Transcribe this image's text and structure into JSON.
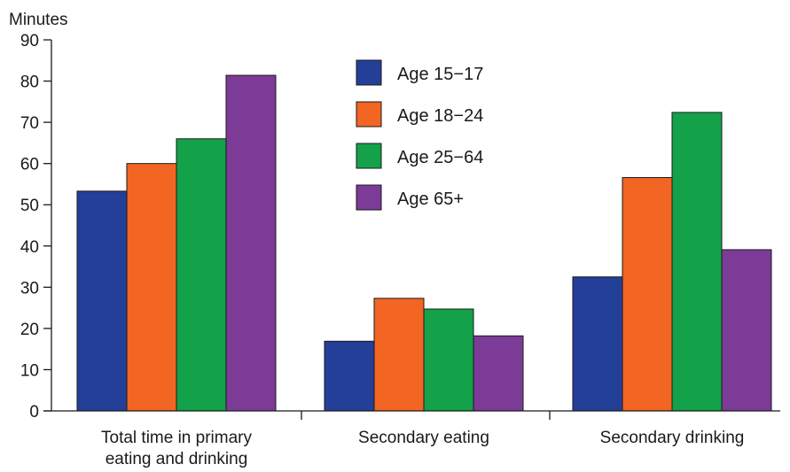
{
  "chart_data": {
    "type": "bar",
    "ylabel": "Minutes",
    "ylim": [
      0,
      90
    ],
    "yticks": [
      0,
      10,
      20,
      30,
      40,
      50,
      60,
      70,
      80,
      90
    ],
    "categories": [
      [
        "Total time in primary",
        "eating and drinking"
      ],
      [
        "Secondary eating"
      ],
      [
        "Secondary drinking"
      ]
    ],
    "series": [
      {
        "name": "Age 15−17",
        "color": "#243F98",
        "values": [
          53.3,
          16.9,
          32.5
        ]
      },
      {
        "name": "Age 18−24",
        "color": "#F26522",
        "values": [
          60.0,
          27.3,
          56.6
        ]
      },
      {
        "name": "Age 25−64",
        "color": "#13A14A",
        "values": [
          66.0,
          24.7,
          72.4
        ]
      },
      {
        "name": "Age 65+",
        "color": "#7C3B96",
        "values": [
          81.4,
          18.2,
          39.1
        ]
      }
    ],
    "legend_position": "top-center",
    "grid": false
  }
}
